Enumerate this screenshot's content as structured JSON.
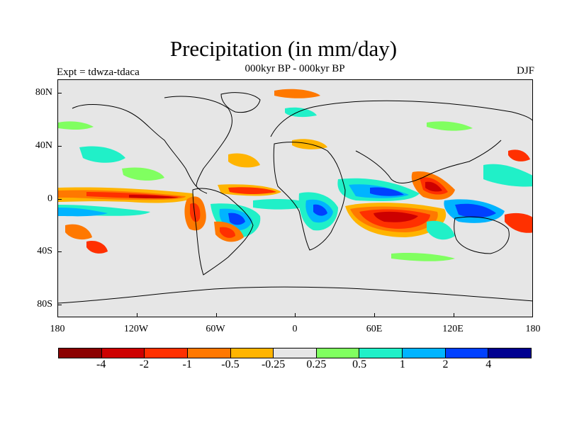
{
  "header": {
    "title": "Precipitation (in mm/day)",
    "subtitle": "000kyr BP - 000kyr BP",
    "left_label": "Expt = tdwza-tdaca",
    "right_label": "DJF"
  },
  "axes": {
    "lat_labels": [
      "80N",
      "40N",
      "0",
      "40S",
      "80S"
    ],
    "lon_labels": [
      "180",
      "120W",
      "60W",
      "0",
      "60E",
      "120E",
      "180"
    ]
  },
  "map": {
    "background_color": "#e6e6e6",
    "coastline_color": "#000000",
    "features": [
      "Positive anomalies: tropical Indian Ocean, equatorial Pacific near South America, central Africa, western Pacific",
      "Negative anomalies: southern Indian Ocean, equatorial eastern Pacific, southern Brazil, Bay of Bengal"
    ]
  },
  "colorbar": {
    "colors": [
      "#8b0000",
      "#cd0000",
      "#ff3000",
      "#ff7800",
      "#ffb400",
      "#e6e6e6",
      "#80ff60",
      "#20f0c8",
      "#00b4ff",
      "#0040ff",
      "#000090"
    ],
    "labels": [
      "-4",
      "-2",
      "-1",
      "-0.5",
      "-0.25",
      "0.25",
      "0.5",
      "1",
      "2",
      "4"
    ]
  }
}
